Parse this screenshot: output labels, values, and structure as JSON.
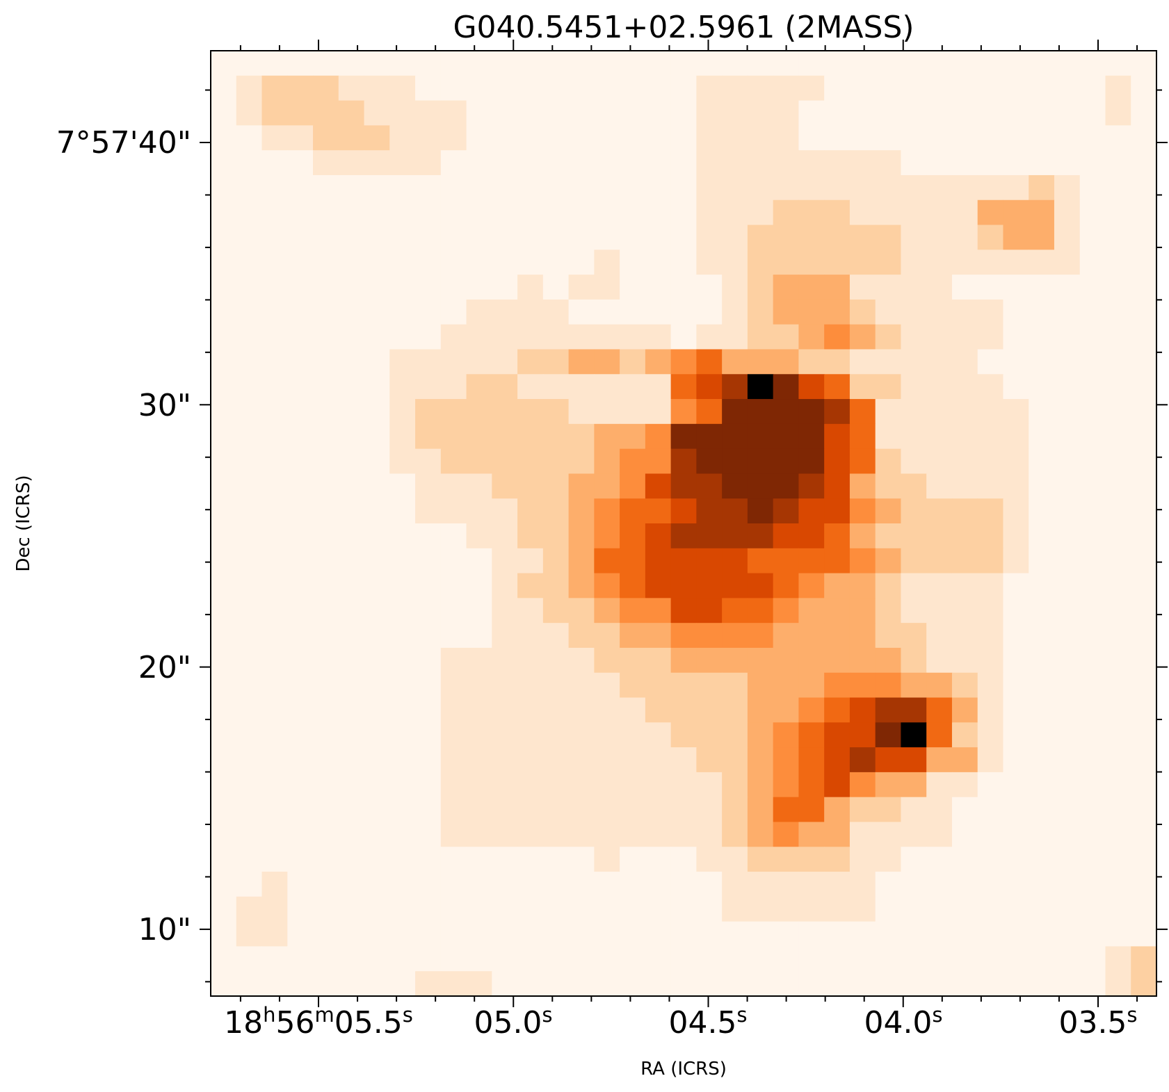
{
  "chart_data": {
    "type": "heatmap",
    "title": "G040.5451+02.5961 (2MASS)",
    "xlabel": "RA (ICRS)",
    "ylabel": "Dec (ICRS)",
    "colormap": "Oranges",
    "colormap_stops": [
      "#fff5eb",
      "#fee6ce",
      "#fdd0a2",
      "#fdae6b",
      "#fd8d3c",
      "#f16913",
      "#d94801",
      "#a63603",
      "#7f2704"
    ],
    "x_ticks": [
      {
        "base": "18",
        "sup1": "h",
        "mid": "56",
        "sup2": "m",
        "rest": "05.5",
        "sup3": "s"
      },
      {
        "base": "",
        "sup1": "",
        "mid": "",
        "sup2": "",
        "rest": "05.0",
        "sup3": "s"
      },
      {
        "base": "",
        "sup1": "",
        "mid": "",
        "sup2": "",
        "rest": "04.5",
        "sup3": "s"
      },
      {
        "base": "",
        "sup1": "",
        "mid": "",
        "sup2": "",
        "rest": "04.0",
        "sup3": "s"
      },
      {
        "base": "",
        "sup1": "",
        "mid": "",
        "sup2": "",
        "rest": "03.5",
        "sup3": "s"
      }
    ],
    "y_ticks": [
      "7°57'40\"",
      "30\"",
      "20\"",
      "10\""
    ],
    "grid": [
      "0000000000000000000000000000000000000",
      "0122211100000000000111110000000000010",
      "0122221111000000000111100000000000010",
      "0011222111000000000111100000000000000",
      "0000111110000000000111111110000000000",
      "0000000000000000000111111111111121000",
      "0000000000000000000111222111113331000",
      "0000000000000000000112222221112331000",
      "0000000000000001000112222221111111000",
      "0000000000001011000012333111100000000",
      "0000000000111100000012333211111000000",
      "0000000001111111110112234321111000000",
      "0000000111112233234533322111110000000",
      "0000000111221111115679865221111000000",
      "0000000122222211114588887511111100000",
      "0000000122222223348888886511111100000",
      "0000000112222223447888886521111100000",
      "0000000011122233467788876322111100000",
      "0000000011112234556778766432222100000",
      "0000000000112234567777665322222100000",
      "0000000000011235566665555432222100000",
      "0000000000012234566666543321111000000",
      "0000000000011223446655433321111000000",
      "0000000000011122334444333322111000000",
      "0000000001111112223333333332111000000",
      "0000000001111111222223334443321000000",
      "0000000001111111122223345677531000000",
      "0000000001111111112223456689521000000",
      "0000000001111111111223456766331000000",
      "0000000001111111111123456433110000000",
      "0000000001111111111123553221100000000",
      "0000000001111111111123433111100000000",
      "0000000000000001000112222110000000000",
      "0010000000000000000011111100000000000",
      "0110000000000000000011111100000000000",
      "0110000000000000000000000000000000000",
      "0000000000000000000000000000000000012",
      "0000000011100000000000000000000000012"
    ]
  }
}
